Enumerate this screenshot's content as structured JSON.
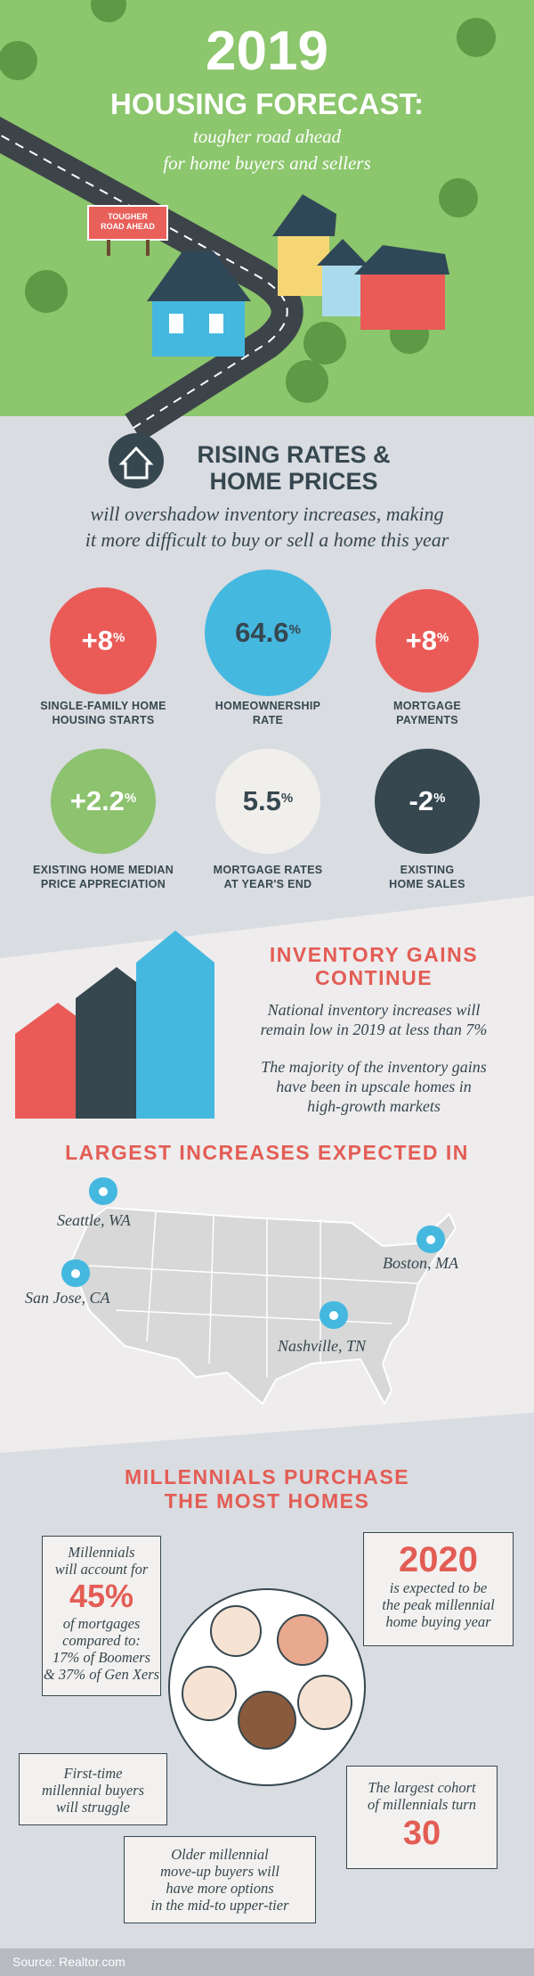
{
  "header": {
    "title": "2019",
    "subtitle": "HOUSING FORECAST:",
    "tagline": [
      "tougher road ahead",
      "for home buyers and sellers"
    ],
    "sign": [
      "TOUGHER",
      "ROAD AHEAD"
    ]
  },
  "rates": {
    "title": [
      "RISING RATES &",
      "HOME PRICES"
    ],
    "subtitle": [
      "will overshadow inventory increases, making",
      "it more difficult to buy or sell a home this year"
    ],
    "stats": [
      {
        "value": "+8",
        "unit": "%",
        "label": [
          "SINGLE-FAMILY HOME",
          "HOUSING STARTS"
        ]
      },
      {
        "value": "64.6",
        "unit": "%",
        "label": [
          "HOMEOWNERSHIP",
          "RATE"
        ]
      },
      {
        "value": "+8",
        "unit": "%",
        "label": [
          "MORTGAGE",
          "PAYMENTS"
        ]
      },
      {
        "value": "+2.2",
        "unit": "%",
        "label": [
          "EXISTING HOME MEDIAN",
          "PRICE APPRECIATION"
        ]
      },
      {
        "value": "5.5",
        "unit": "%",
        "label": [
          "MORTGAGE RATES",
          "AT YEAR'S END"
        ]
      },
      {
        "value": "-2",
        "unit": "%",
        "label": [
          "EXISTING",
          "HOME SALES"
        ]
      }
    ]
  },
  "inventory": {
    "title": [
      "INVENTORY GAINS",
      "CONTINUE"
    ],
    "paragraphs": [
      [
        "National inventory increases will",
        "remain low in 2019 at less than 7%"
      ],
      [
        "The majority of the inventory gains",
        "have been in upscale homes in",
        "high-growth markets"
      ]
    ]
  },
  "map": {
    "title": "LARGEST INCREASES EXPECTED IN",
    "cities": [
      "Seattle, WA",
      "San Jose, CA",
      "Nashville, TN",
      "Boston, MA"
    ]
  },
  "millennials": {
    "title": [
      "MILLENNIALS PURCHASE",
      "THE MOST HOMES"
    ],
    "share": {
      "intro": [
        "Millennials",
        "will account for"
      ],
      "value": "45%",
      "detail": [
        "of mortgages",
        "compared to:",
        "17% of Boomers",
        "& 37% of Gen Xers"
      ]
    },
    "peak": {
      "value": "2020",
      "text": [
        "is expected to be",
        "the peak millennial",
        "home buying year"
      ]
    },
    "struggle": [
      "First-time",
      "millennial buyers",
      "will struggle"
    ],
    "cohort": {
      "text": [
        "The largest cohort",
        "of millennials turn"
      ],
      "value": "30"
    },
    "options": [
      "Older millennial",
      "move-up buyers will",
      "have more options",
      "in the mid-to upper-tier"
    ]
  },
  "footer": {
    "source": "Source: Realtor.com"
  }
}
